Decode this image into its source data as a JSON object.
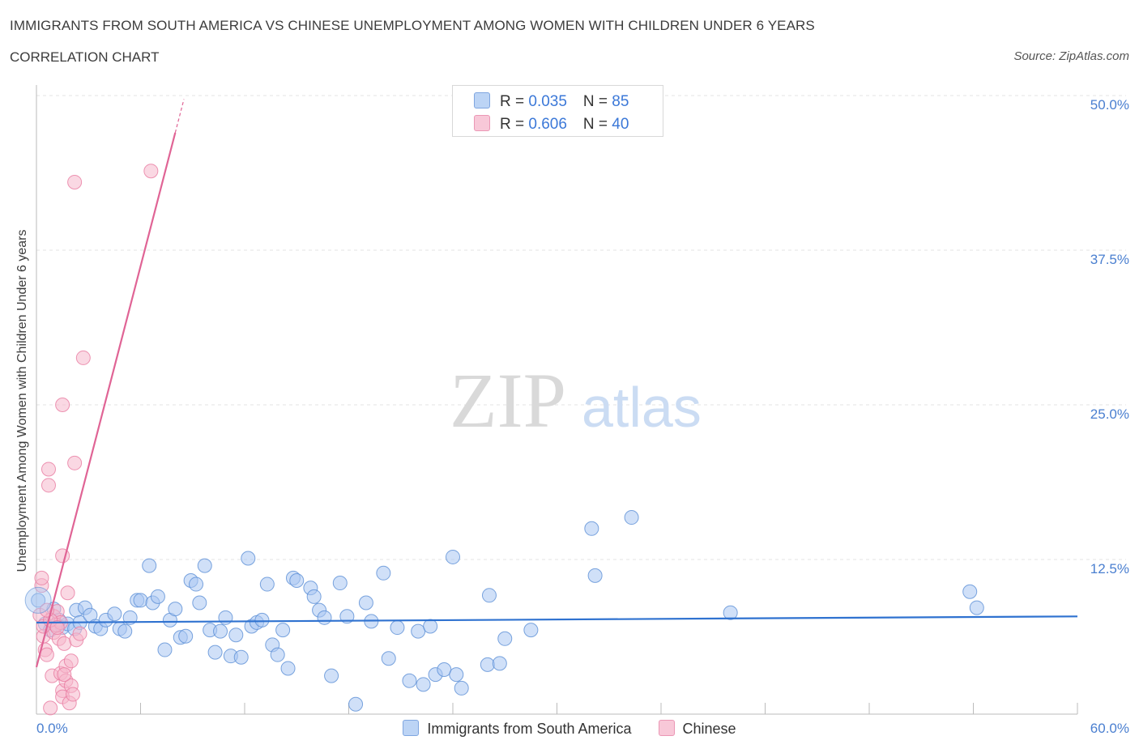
{
  "title": "IMMIGRANTS FROM SOUTH AMERICA VS CHINESE UNEMPLOYMENT AMONG WOMEN WITH CHILDREN UNDER 6 YEARS",
  "subtitle": "CORRELATION CHART",
  "source": "Source: ZipAtlas.com",
  "watermark": {
    "zip": "ZIP",
    "atlas": "atlas"
  },
  "legend": {
    "rows": [
      {
        "r_label": "R = ",
        "r_value": "0.035",
        "n_label": "N = ",
        "n_value": "85",
        "color": "#a9c7f2"
      },
      {
        "r_label": "R = ",
        "r_value": "0.606",
        "n_label": "N = ",
        "n_value": "40",
        "color": "#f5b8cc"
      }
    ]
  },
  "chart_data": {
    "type": "scatter",
    "title": "IMMIGRANTS FROM SOUTH AMERICA VS CHINESE UNEMPLOYMENT AMONG WOMEN WITH CHILDREN UNDER 6 YEARS",
    "xlabel": "",
    "ylabel": "Unemployment Among Women with Children Under 6 years",
    "xlim": [
      0,
      60
    ],
    "ylim": [
      0,
      50
    ],
    "x_tick_labels": [
      "0.0%",
      "60.0%"
    ],
    "y_ticks": [
      12.5,
      25.0,
      37.5,
      50.0
    ],
    "y_tick_labels": [
      "12.5%",
      "25.0%",
      "37.5%",
      "50.0%"
    ],
    "grid": true,
    "legend_position": "bottom-center",
    "series": [
      {
        "name": "Immigrants from South America",
        "color": "#5b8fd6",
        "fill": "#a9c7f2",
        "trend": {
          "x0": 0,
          "y0": 7.4,
          "x1": 60,
          "y1": 7.9,
          "color": "#2f72d0"
        },
        "points": [
          [
            0.1,
            9.2
          ],
          [
            0.5,
            7.3
          ],
          [
            0.8,
            6.8
          ],
          [
            1.0,
            8.5
          ],
          [
            1.2,
            7.2
          ],
          [
            1.5,
            7.0
          ],
          [
            1.8,
            7.3
          ],
          [
            2.2,
            6.9
          ],
          [
            2.3,
            8.4
          ],
          [
            2.5,
            7.4
          ],
          [
            2.8,
            8.6
          ],
          [
            3.1,
            8.0
          ],
          [
            3.4,
            7.1
          ],
          [
            3.7,
            6.9
          ],
          [
            4.0,
            7.6
          ],
          [
            4.5,
            8.1
          ],
          [
            4.8,
            6.9
          ],
          [
            5.1,
            6.7
          ],
          [
            5.4,
            7.8
          ],
          [
            5.8,
            9.2
          ],
          [
            6.0,
            9.2
          ],
          [
            6.5,
            12.0
          ],
          [
            6.7,
            9.0
          ],
          [
            7.0,
            9.5
          ],
          [
            7.4,
            5.2
          ],
          [
            7.7,
            7.6
          ],
          [
            8.0,
            8.5
          ],
          [
            8.3,
            6.2
          ],
          [
            8.6,
            6.3
          ],
          [
            8.9,
            10.8
          ],
          [
            9.2,
            10.5
          ],
          [
            9.4,
            9.0
          ],
          [
            9.7,
            12.0
          ],
          [
            10.0,
            6.8
          ],
          [
            10.3,
            5.0
          ],
          [
            10.6,
            6.7
          ],
          [
            10.9,
            7.8
          ],
          [
            11.2,
            4.7
          ],
          [
            11.5,
            6.4
          ],
          [
            11.8,
            4.6
          ],
          [
            12.2,
            12.6
          ],
          [
            12.4,
            7.1
          ],
          [
            12.7,
            7.4
          ],
          [
            13.0,
            7.6
          ],
          [
            13.3,
            10.5
          ],
          [
            13.6,
            5.6
          ],
          [
            13.9,
            4.8
          ],
          [
            14.2,
            6.8
          ],
          [
            14.5,
            3.7
          ],
          [
            14.8,
            11.0
          ],
          [
            15.0,
            10.8
          ],
          [
            15.8,
            10.2
          ],
          [
            16.0,
            9.5
          ],
          [
            16.3,
            8.4
          ],
          [
            16.6,
            7.8
          ],
          [
            17.0,
            3.1
          ],
          [
            17.5,
            10.6
          ],
          [
            17.9,
            7.9
          ],
          [
            18.4,
            0.8
          ],
          [
            19.0,
            9.0
          ],
          [
            19.3,
            7.5
          ],
          [
            20.0,
            11.4
          ],
          [
            20.3,
            4.5
          ],
          [
            20.8,
            7.0
          ],
          [
            21.5,
            2.7
          ],
          [
            22.0,
            6.7
          ],
          [
            22.3,
            2.4
          ],
          [
            22.7,
            7.1
          ],
          [
            23.0,
            3.2
          ],
          [
            23.5,
            3.6
          ],
          [
            24.0,
            12.7
          ],
          [
            24.2,
            3.2
          ],
          [
            24.5,
            2.1
          ],
          [
            26.0,
            4.0
          ],
          [
            26.1,
            9.6
          ],
          [
            26.7,
            4.1
          ],
          [
            27.0,
            6.1
          ],
          [
            28.5,
            6.8
          ],
          [
            32.0,
            15.0
          ],
          [
            32.2,
            11.2
          ],
          [
            34.3,
            15.9
          ],
          [
            40.0,
            8.2
          ],
          [
            53.8,
            9.9
          ],
          [
            54.2,
            8.6
          ],
          [
            1.3,
            7.6
          ]
        ]
      },
      {
        "name": "Chinese",
        "color": "#e87ba0",
        "fill": "#f5b8cc",
        "trend": {
          "x0": 0,
          "y0": 3.8,
          "x1": 8.0,
          "y1": 47.0,
          "color": "#e06495"
        },
        "points": [
          [
            0.2,
            8.0
          ],
          [
            0.3,
            10.4
          ],
          [
            0.3,
            11.0
          ],
          [
            0.4,
            6.3
          ],
          [
            0.5,
            5.2
          ],
          [
            0.6,
            4.8
          ],
          [
            0.7,
            18.5
          ],
          [
            0.7,
            19.8
          ],
          [
            0.8,
            0.5
          ],
          [
            0.9,
            3.1
          ],
          [
            1.0,
            7.9
          ],
          [
            1.0,
            6.6
          ],
          [
            1.1,
            7.2
          ],
          [
            1.2,
            8.3
          ],
          [
            1.3,
            6.1
          ],
          [
            1.4,
            7.4
          ],
          [
            1.4,
            3.3
          ],
          [
            1.5,
            12.8
          ],
          [
            1.5,
            1.9
          ],
          [
            1.5,
            1.4
          ],
          [
            1.6,
            5.7
          ],
          [
            1.7,
            3.9
          ],
          [
            1.7,
            2.7
          ],
          [
            1.8,
            9.8
          ],
          [
            1.9,
            0.9
          ],
          [
            2.0,
            2.3
          ],
          [
            2.0,
            4.3
          ],
          [
            2.1,
            1.6
          ],
          [
            2.2,
            20.3
          ],
          [
            2.3,
            6.0
          ],
          [
            2.5,
            6.5
          ],
          [
            1.5,
            25.0
          ],
          [
            2.7,
            28.8
          ],
          [
            2.2,
            43.0
          ],
          [
            6.6,
            43.9
          ],
          [
            0.4,
            7.1
          ],
          [
            0.8,
            7.6
          ],
          [
            1.2,
            7.0
          ],
          [
            0.6,
            8.4
          ],
          [
            1.6,
            3.2
          ]
        ]
      }
    ]
  },
  "bottom_legend": [
    "Immigrants from South America",
    "Chinese"
  ]
}
